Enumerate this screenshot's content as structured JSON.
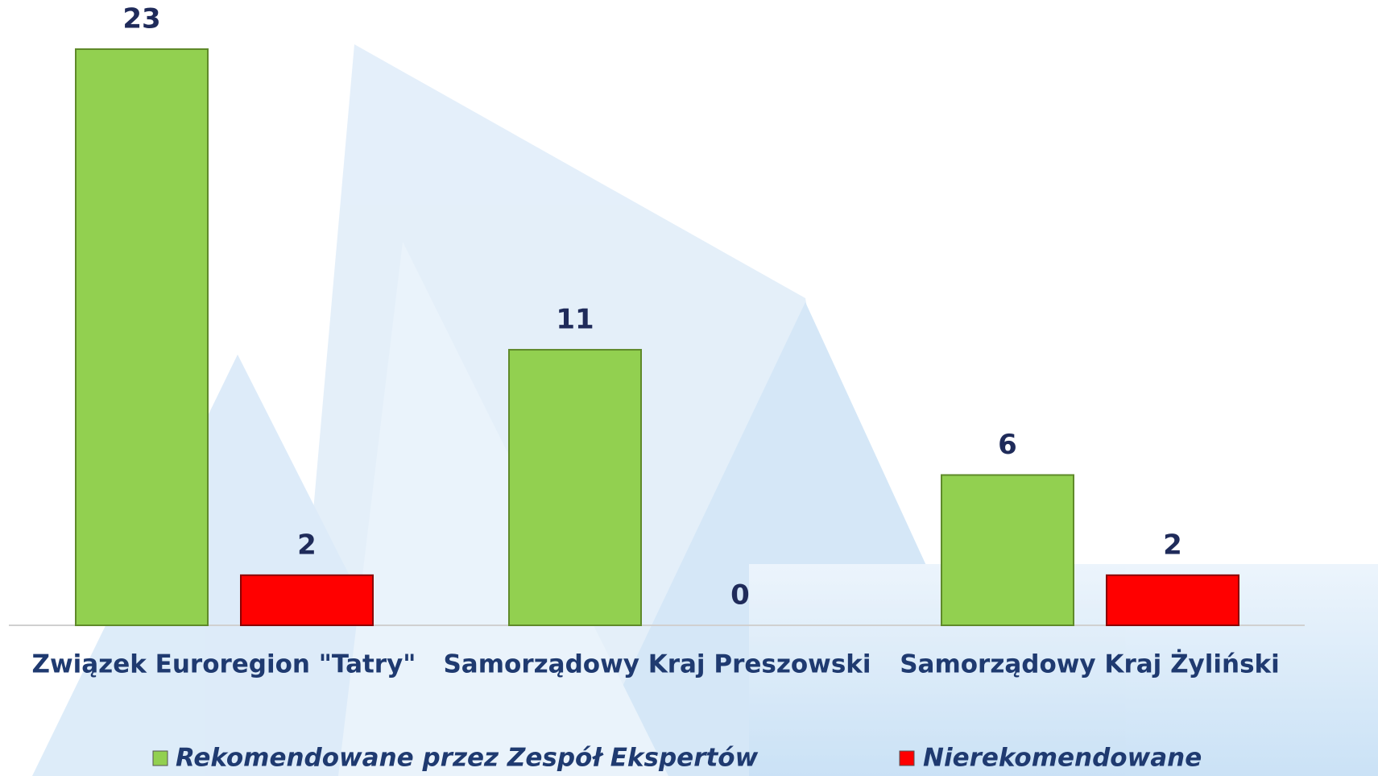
{
  "chart_data": {
    "type": "bar",
    "categories": [
      "Związek Euroregion \"Tatry\"",
      "Samorządowy Kraj Preszowski",
      "Samorządowy Kraj Żyliński"
    ],
    "series": [
      {
        "name": "Rekomendowane przez Zespół Ekspertów",
        "color": "#92d050",
        "values": [
          23,
          11,
          6
        ]
      },
      {
        "name": "Nierekomendowane",
        "color": "#ff0000",
        "values": [
          2,
          0,
          2
        ]
      }
    ],
    "legend": "bottom"
  }
}
